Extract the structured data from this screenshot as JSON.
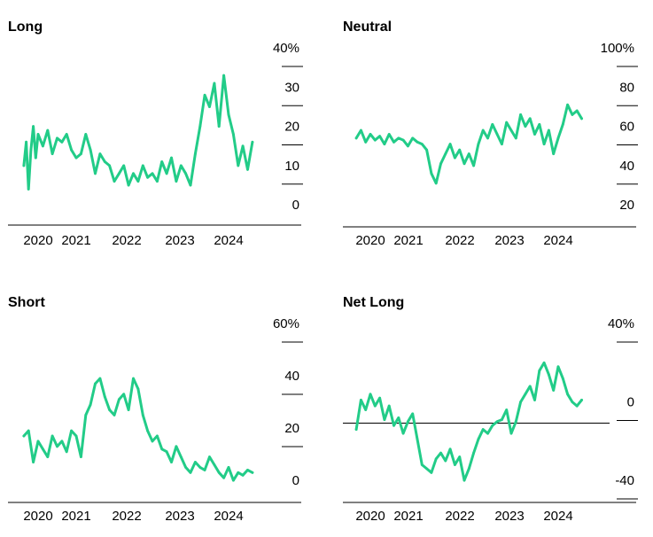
{
  "colors": {
    "series": "#22cc88",
    "axis": "#000000",
    "background": "#ffffff"
  },
  "chart_data": [
    {
      "type": "line",
      "title": "Long",
      "xlabel": "",
      "ylabel": "",
      "ylim": [
        0,
        40
      ],
      "yticks": [
        {
          "value": 40,
          "label": "40%"
        },
        {
          "value": 30,
          "label": "30"
        },
        {
          "value": 20,
          "label": "20"
        },
        {
          "value": 10,
          "label": "10"
        },
        {
          "value": 0,
          "label": "0"
        }
      ],
      "xticks": [
        "2020",
        "2021",
        "2022",
        "2023",
        "2024"
      ],
      "xlim": [
        2019.5,
        2025.4
      ],
      "series": [
        {
          "x": [
            2019.7,
            2019.75,
            2019.8,
            2019.85,
            2019.9,
            2019.95,
            2020.0,
            2020.1,
            2020.2,
            2020.3,
            2020.4,
            2020.5,
            2020.6,
            2020.7,
            2020.8,
            2020.9,
            2021.0,
            2021.1,
            2021.2,
            2021.3,
            2021.4,
            2021.5,
            2021.6,
            2021.7,
            2021.8,
            2021.9,
            2022.0,
            2022.1,
            2022.2,
            2022.3,
            2022.4,
            2022.5,
            2022.6,
            2022.7,
            2022.8,
            2022.9,
            2023.0,
            2023.1,
            2023.2,
            2023.3,
            2023.4,
            2023.5,
            2023.6,
            2023.7,
            2023.8,
            2023.9,
            2024.0,
            2024.1,
            2024.2,
            2024.3,
            2024.4,
            2024.5
          ],
          "y": [
            12,
            18,
            6,
            16,
            22,
            14,
            20,
            17,
            21,
            15,
            19,
            18,
            20,
            16,
            14,
            15,
            20,
            16,
            10,
            15,
            13,
            12,
            8,
            10,
            12,
            7,
            10,
            8,
            12,
            9,
            10,
            8,
            13,
            10,
            14,
            8,
            12,
            10,
            7,
            15,
            22,
            30,
            27,
            33,
            22,
            35,
            25,
            20,
            12,
            17,
            11,
            18
          ]
        }
      ]
    },
    {
      "type": "line",
      "title": "Neutral",
      "xlabel": "",
      "ylabel": "",
      "ylim": [
        20,
        100
      ],
      "yticks": [
        {
          "value": 100,
          "label": "100%"
        },
        {
          "value": 80,
          "label": "80"
        },
        {
          "value": 60,
          "label": "60"
        },
        {
          "value": 40,
          "label": "40"
        },
        {
          "value": 20,
          "label": "20"
        }
      ],
      "xticks": [
        "2020",
        "2021",
        "2022",
        "2023",
        "2024"
      ],
      "xlim": [
        2019.5,
        2025.4
      ],
      "series": [
        {
          "x": [
            2019.7,
            2019.8,
            2019.9,
            2020.0,
            2020.1,
            2020.2,
            2020.3,
            2020.4,
            2020.5,
            2020.6,
            2020.7,
            2020.8,
            2020.9,
            2021.0,
            2021.1,
            2021.2,
            2021.3,
            2021.4,
            2021.5,
            2021.6,
            2021.7,
            2021.8,
            2021.9,
            2022.0,
            2022.1,
            2022.2,
            2022.3,
            2022.4,
            2022.5,
            2022.6,
            2022.7,
            2022.8,
            2022.9,
            2023.0,
            2023.1,
            2023.2,
            2023.3,
            2023.4,
            2023.5,
            2023.6,
            2023.7,
            2023.8,
            2023.9,
            2024.0,
            2024.1,
            2024.2,
            2024.3,
            2024.4,
            2024.5
          ],
          "y": [
            58,
            62,
            56,
            60,
            57,
            59,
            55,
            60,
            56,
            58,
            57,
            54,
            58,
            56,
            55,
            52,
            40,
            35,
            45,
            50,
            55,
            48,
            52,
            45,
            50,
            44,
            55,
            62,
            58,
            65,
            60,
            55,
            66,
            62,
            58,
            70,
            64,
            68,
            60,
            65,
            55,
            62,
            50,
            58,
            65,
            75,
            70,
            72,
            68
          ]
        }
      ]
    },
    {
      "type": "line",
      "title": "Short",
      "xlabel": "",
      "ylabel": "",
      "ylim": [
        0,
        60
      ],
      "yticks": [
        {
          "value": 60,
          "label": "60%"
        },
        {
          "value": 40,
          "label": "40"
        },
        {
          "value": 20,
          "label": "20"
        },
        {
          "value": 0,
          "label": "0"
        }
      ],
      "xticks": [
        "2020",
        "2021",
        "2022",
        "2023",
        "2024"
      ],
      "xlim": [
        2019.5,
        2025.4
      ],
      "series": [
        {
          "x": [
            2019.7,
            2019.8,
            2019.9,
            2020.0,
            2020.1,
            2020.2,
            2020.3,
            2020.4,
            2020.5,
            2020.6,
            2020.7,
            2020.8,
            2020.9,
            2021.0,
            2021.1,
            2021.2,
            2021.3,
            2021.4,
            2021.5,
            2021.6,
            2021.7,
            2021.8,
            2021.9,
            2022.0,
            2022.1,
            2022.2,
            2022.3,
            2022.4,
            2022.5,
            2022.6,
            2022.7,
            2022.8,
            2022.9,
            2023.0,
            2023.1,
            2023.2,
            2023.3,
            2023.4,
            2023.5,
            2023.6,
            2023.7,
            2023.8,
            2023.9,
            2024.0,
            2024.1,
            2024.2,
            2024.3,
            2024.4,
            2024.5
          ],
          "y": [
            20,
            22,
            10,
            18,
            15,
            12,
            20,
            16,
            18,
            14,
            22,
            20,
            12,
            28,
            32,
            40,
            42,
            35,
            30,
            28,
            34,
            36,
            30,
            42,
            38,
            28,
            22,
            18,
            20,
            15,
            14,
            10,
            16,
            12,
            8,
            6,
            10,
            8,
            7,
            12,
            9,
            6,
            4,
            8,
            3,
            6,
            5,
            7,
            6
          ]
        }
      ]
    },
    {
      "type": "line",
      "title": "Net Long",
      "xlabel": "",
      "ylabel": "",
      "ylim": [
        -40,
        40
      ],
      "yticks": [
        {
          "value": 40,
          "label": "40%"
        },
        {
          "value": 0,
          "label": "0"
        },
        {
          "value": -40,
          "label": "-40"
        }
      ],
      "xticks": [
        "2020",
        "2021",
        "2022",
        "2023",
        "2024"
      ],
      "xlim": [
        2019.5,
        2025.4
      ],
      "series": [
        {
          "x": [
            2019.7,
            2019.8,
            2019.9,
            2020.0,
            2020.1,
            2020.2,
            2020.3,
            2020.4,
            2020.5,
            2020.6,
            2020.7,
            2020.8,
            2020.9,
            2021.0,
            2021.1,
            2021.2,
            2021.3,
            2021.4,
            2021.5,
            2021.6,
            2021.7,
            2021.8,
            2021.9,
            2022.0,
            2022.1,
            2022.2,
            2022.3,
            2022.4,
            2022.5,
            2022.6,
            2022.7,
            2022.8,
            2022.9,
            2023.0,
            2023.1,
            2023.2,
            2023.3,
            2023.4,
            2023.5,
            2023.6,
            2023.7,
            2023.8,
            2023.9,
            2024.0,
            2024.1,
            2024.2,
            2024.3,
            2024.4,
            2024.5
          ],
          "y": [
            -10,
            5,
            0,
            8,
            2,
            6,
            -5,
            2,
            -8,
            -4,
            -12,
            -6,
            -2,
            -15,
            -28,
            -30,
            -32,
            -25,
            -22,
            -26,
            -20,
            -28,
            -24,
            -36,
            -30,
            -22,
            -15,
            -10,
            -12,
            -8,
            -6,
            -5,
            0,
            -12,
            -6,
            4,
            8,
            12,
            5,
            20,
            24,
            18,
            10,
            22,
            16,
            8,
            4,
            2,
            5
          ]
        }
      ]
    }
  ]
}
